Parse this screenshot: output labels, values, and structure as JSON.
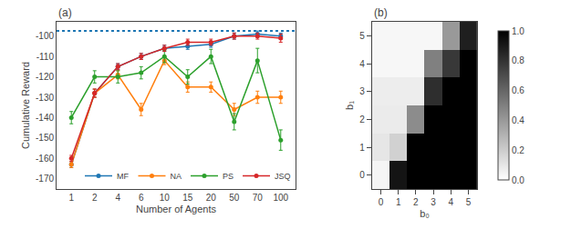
{
  "chart_data": [
    {
      "type": "line",
      "title": "(a)",
      "xlabel": "Number of Agents",
      "ylabel": "Cumulative Reward",
      "categories": [
        "1",
        "2",
        "4",
        "6",
        "10",
        "15",
        "20",
        "50",
        "70",
        "100"
      ],
      "series": [
        {
          "name": "MF",
          "color": "#1f77b4",
          "marker": "circle",
          "values": [
            -163,
            -128,
            -115,
            -110,
            -106,
            -105,
            -104,
            -100,
            -99,
            -100
          ],
          "errors": [
            1.5,
            2.0,
            1.5,
            1.5,
            1.5,
            1.5,
            1.5,
            1.5,
            1.5,
            1.5
          ]
        },
        {
          "name": "NA",
          "color": "#ff7f0e",
          "marker": "circle",
          "values": [
            -163,
            -128,
            -119,
            -136,
            -112,
            -125,
            -125,
            -136,
            -130,
            -130
          ],
          "errors": [
            1.5,
            2.0,
            2.0,
            3.0,
            2.0,
            2.5,
            2.5,
            3.0,
            3.0,
            3.0
          ]
        },
        {
          "name": "PS",
          "color": "#2ca02c",
          "marker": "circle",
          "values": [
            -140,
            -120,
            -120,
            -118,
            -110,
            -120,
            -110,
            -142,
            -112,
            -151
          ],
          "errors": [
            3.0,
            3.0,
            3.0,
            3.0,
            3.0,
            3.5,
            3.5,
            4.0,
            6.0,
            5.0
          ]
        },
        {
          "name": "JSQ",
          "color": "#d62728",
          "marker": "circle",
          "values": [
            -160,
            -128,
            -115,
            -110,
            -106,
            -103,
            -103,
            -100,
            -100,
            -101
          ],
          "errors": [
            1.5,
            2.0,
            1.5,
            1.5,
            1.5,
            1.5,
            1.5,
            1.5,
            1.5,
            2.0
          ]
        }
      ],
      "reference_line": {
        "value": -97.5,
        "color": "#1f77b4",
        "line_style": "dotted"
      },
      "ylim": [
        -175,
        -93
      ],
      "yticks": [
        -170,
        -160,
        -150,
        -140,
        -130,
        -120,
        -110,
        -100
      ],
      "grid": false,
      "legend": "lower right"
    },
    {
      "type": "heatmap",
      "title": "(b)",
      "xlabel": "b₀",
      "ylabel": "b₁",
      "x": [
        0,
        1,
        2,
        3,
        4,
        5
      ],
      "y": [
        5,
        4,
        3,
        2,
        1,
        0
      ],
      "values": [
        [
          0.03,
          0.03,
          0.03,
          0.03,
          0.4,
          0.88
        ],
        [
          0.03,
          0.03,
          0.03,
          0.5,
          0.78,
          1.0
        ],
        [
          0.07,
          0.07,
          0.07,
          0.82,
          1.0,
          1.0
        ],
        [
          0.08,
          0.08,
          0.45,
          1.0,
          1.0,
          1.0
        ],
        [
          0.1,
          0.18,
          1.0,
          1.0,
          1.0,
          1.0
        ],
        [
          0.04,
          0.92,
          1.0,
          1.0,
          1.0,
          1.0
        ]
      ],
      "xlim": [
        -0.5,
        5.5
      ],
      "ylim": [
        -0.5,
        5.5
      ],
      "xticks": [
        0,
        1,
        2,
        3,
        4,
        5
      ],
      "yticks": [
        0,
        1,
        2,
        3,
        4,
        5
      ],
      "zlim": [
        0.0,
        1.0
      ],
      "colorbar_ticks": [
        {
          "value": 0.0,
          "label": "0.0"
        },
        0.2,
        0.4,
        0.6,
        0.8,
        {
          "value": 1.0,
          "label": "1.0"
        }
      ],
      "grid": false
    }
  ]
}
